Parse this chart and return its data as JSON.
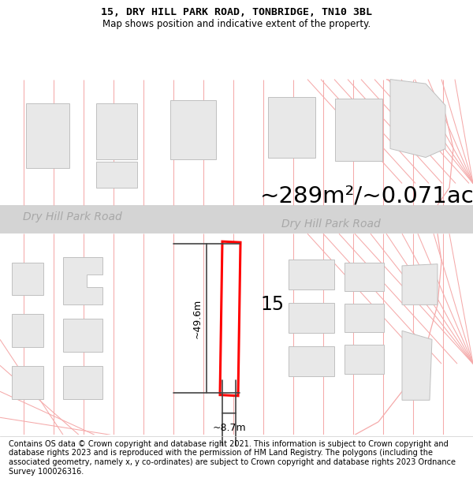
{
  "title_line1": "15, DRY HILL PARK ROAD, TONBRIDGE, TN10 3BL",
  "title_line2": "Map shows position and indicative extent of the property.",
  "area_text": "~289m²/~0.071ac.",
  "road_label_left": "Dry Hill Park Road",
  "road_label_right": "Dry Hill Park Road",
  "house_number": "15",
  "dim_height": "~49.6m",
  "dim_width": "~8.7m",
  "footer_text": "Contains OS data © Crown copyright and database right 2021. This information is subject to Crown copyright and database rights 2023 and is reproduced with the permission of HM Land Registry. The polygons (including the associated geometry, namely x, y co-ordinates) are subject to Crown copyright and database rights 2023 Ordnance Survey 100026316.",
  "bg_color": "#ffffff",
  "map_bg": "#ffffff",
  "building_fill": "#e8e8e8",
  "building_edge": "#c0c0c0",
  "plot_line_color": "#ff0000",
  "dim_line_color": "#444444",
  "street_line_color": "#f5aaaa",
  "road_fill": "#d4d4d4",
  "title_fontsize": 9.5,
  "subtitle_fontsize": 8.5,
  "area_fontsize": 21,
  "road_label_fontsize": 10,
  "house_num_fontsize": 17,
  "dim_fontsize": 9,
  "footer_fontsize": 7
}
